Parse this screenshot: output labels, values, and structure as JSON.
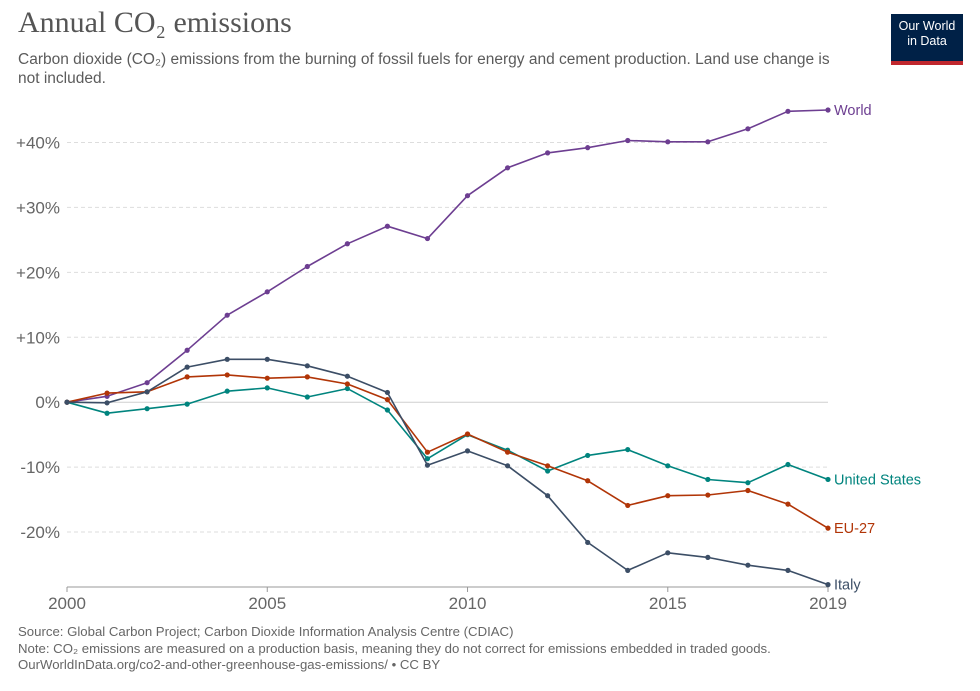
{
  "header": {
    "title": "Annual CO₂ emissions",
    "subtitle": "Carbon dioxide (CO₂) emissions from the burning of fossil fuels for energy and cement production. Land use change is not included."
  },
  "logo": {
    "line1": "Our World",
    "line2": "in Data",
    "bg_color": "#002147",
    "accent_color": "#c0272d"
  },
  "footer": {
    "source": "Source: Global Carbon Project; Carbon Dioxide Information Analysis Centre (CDIAC)",
    "note": "Note: CO₂ emissions are measured on a production basis, meaning they do not correct for emissions embedded in traded goods.",
    "url": "OurWorldInData.org/co2-and-other-greenhouse-gas-emissions/ • CC BY"
  },
  "chart_data": {
    "type": "line",
    "title": "Annual CO₂ emissions",
    "xlabel": "",
    "ylabel": "",
    "x": [
      2000,
      2001,
      2002,
      2003,
      2004,
      2005,
      2006,
      2007,
      2008,
      2009,
      2010,
      2011,
      2012,
      2013,
      2014,
      2015,
      2016,
      2017,
      2018,
      2019
    ],
    "xlim": [
      2000,
      2019
    ],
    "ylim": [
      -28,
      45
    ],
    "x_ticks": [
      "2000",
      "2005",
      "2010",
      "2015",
      "2019"
    ],
    "x_tick_values": [
      2000,
      2005,
      2010,
      2015,
      2019
    ],
    "y_ticks": [
      "+40%",
      "+30%",
      "+20%",
      "+10%",
      "0%",
      "-10%",
      "-20%"
    ],
    "y_tick_values": [
      40,
      30,
      20,
      10,
      0,
      -10,
      -20
    ],
    "grid": "horizontal dashed",
    "series": [
      {
        "name": "World",
        "color": "#6d3e91",
        "values": [
          0,
          0.9,
          3.0,
          8.0,
          13.4,
          17.0,
          20.9,
          24.4,
          27.1,
          25.2,
          31.8,
          36.1,
          38.4,
          39.2,
          40.3,
          40.1,
          40.1,
          42.1,
          44.8,
          45.0
        ]
      },
      {
        "name": "United States",
        "color": "#00847e",
        "values": [
          0,
          -1.7,
          -1.0,
          -0.3,
          1.7,
          2.2,
          0.8,
          2.1,
          -1.2,
          -8.7,
          -5.0,
          -7.4,
          -10.6,
          -8.2,
          -7.3,
          -9.8,
          -11.9,
          -12.4,
          -9.6,
          -11.9
        ]
      },
      {
        "name": "EU-27",
        "color": "#b13507",
        "values": [
          0,
          1.4,
          1.6,
          3.9,
          4.2,
          3.7,
          3.9,
          2.8,
          0.4,
          -7.7,
          -4.9,
          -7.7,
          -9.8,
          -12.1,
          -15.9,
          -14.4,
          -14.3,
          -13.6,
          -15.7,
          -19.4
        ]
      },
      {
        "name": "Italy",
        "color": "#3c4e66",
        "values": [
          0,
          -0.1,
          1.6,
          5.4,
          6.6,
          6.6,
          5.6,
          4.0,
          1.5,
          -9.7,
          -7.5,
          -9.8,
          -14.4,
          -21.6,
          -25.9,
          -23.2,
          -23.9,
          -25.1,
          -25.9,
          -28.1
        ]
      }
    ]
  }
}
